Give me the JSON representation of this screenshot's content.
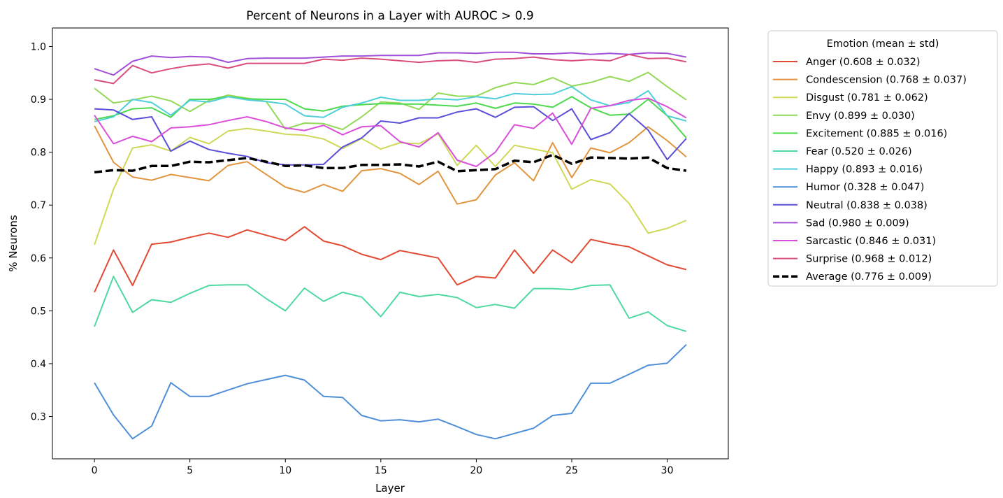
{
  "chart_data": {
    "type": "line",
    "title": "Percent of Neurons in a Layer with AUROC > 0.9",
    "xlabel": "Layer",
    "ylabel": "% Neurons",
    "xlim": [
      -2.2,
      33.2
    ],
    "ylim": [
      0.22,
      1.035
    ],
    "xticks": [
      0,
      5,
      10,
      15,
      20,
      25,
      30
    ],
    "xtick_labels": [
      "0",
      "5",
      "10",
      "15",
      "20",
      "25",
      "30"
    ],
    "yticks": [
      0.3,
      0.4,
      0.5,
      0.6,
      0.7,
      0.8,
      0.9,
      1.0
    ],
    "ytick_labels": [
      "0.3",
      "0.4",
      "0.5",
      "0.6",
      "0.7",
      "0.8",
      "0.9",
      "1.0"
    ],
    "grid": false,
    "legend": {
      "title": "Emotion (mean ± std)",
      "placement": "outside upper right"
    },
    "x": [
      0,
      1,
      2,
      3,
      4,
      5,
      6,
      7,
      8,
      9,
      10,
      11,
      12,
      13,
      14,
      15,
      16,
      17,
      18,
      19,
      20,
      21,
      22,
      23,
      24,
      25,
      26,
      27,
      28,
      29,
      30,
      31
    ],
    "series": [
      {
        "name": "Anger (0.608 ± 0.032)",
        "color": "#e24a33",
        "values": [
          0.535,
          0.615,
          0.548,
          0.626,
          0.63,
          0.639,
          0.647,
          0.639,
          0.653,
          0.643,
          0.633,
          0.659,
          0.632,
          0.623,
          0.607,
          0.597,
          0.614,
          0.607,
          0.6,
          0.549,
          0.565,
          0.562,
          0.615,
          0.571,
          0.615,
          0.591,
          0.635,
          0.627,
          0.621,
          0.604,
          0.587,
          0.578
        ]
      },
      {
        "name": "Condescension (0.768 ± 0.037)",
        "color": "#e0953e",
        "values": [
          0.85,
          0.781,
          0.753,
          0.747,
          0.758,
          0.752,
          0.746,
          0.775,
          0.782,
          0.758,
          0.734,
          0.724,
          0.739,
          0.726,
          0.765,
          0.769,
          0.76,
          0.739,
          0.764,
          0.702,
          0.71,
          0.757,
          0.78,
          0.746,
          0.818,
          0.752,
          0.808,
          0.799,
          0.818,
          0.848,
          0.822,
          0.791
        ]
      },
      {
        "name": "Disgust (0.781 ± 0.062)",
        "color": "#cfd957",
        "values": [
          0.625,
          0.73,
          0.808,
          0.814,
          0.802,
          0.828,
          0.816,
          0.84,
          0.845,
          0.84,
          0.834,
          0.832,
          0.825,
          0.807,
          0.826,
          0.806,
          0.818,
          0.816,
          0.835,
          0.775,
          0.813,
          0.773,
          0.813,
          0.806,
          0.799,
          0.73,
          0.748,
          0.74,
          0.703,
          0.647,
          0.656,
          0.671
        ]
      },
      {
        "name": "Envy (0.899 ± 0.030)",
        "color": "#92d957",
        "values": [
          0.921,
          0.893,
          0.899,
          0.906,
          0.897,
          0.877,
          0.898,
          0.908,
          0.902,
          0.896,
          0.844,
          0.855,
          0.854,
          0.843,
          0.867,
          0.895,
          0.893,
          0.881,
          0.912,
          0.906,
          0.906,
          0.922,
          0.932,
          0.928,
          0.941,
          0.925,
          0.932,
          0.943,
          0.934,
          0.951,
          0.924,
          0.899
        ]
      },
      {
        "name": "Excitement (0.885 ± 0.016)",
        "color": "#4dd94d",
        "values": [
          0.862,
          0.869,
          0.882,
          0.884,
          0.866,
          0.9,
          0.9,
          0.905,
          0.901,
          0.9,
          0.9,
          0.882,
          0.878,
          0.887,
          0.89,
          0.892,
          0.891,
          0.891,
          0.889,
          0.887,
          0.893,
          0.883,
          0.893,
          0.891,
          0.885,
          0.905,
          0.884,
          0.87,
          0.872,
          0.9,
          0.869,
          0.827
        ]
      },
      {
        "name": "Fear (0.520 ± 0.026)",
        "color": "#4fd9a0",
        "values": [
          0.47,
          0.565,
          0.497,
          0.521,
          0.516,
          0.533,
          0.548,
          0.549,
          0.549,
          0.523,
          0.5,
          0.543,
          0.518,
          0.535,
          0.526,
          0.489,
          0.535,
          0.527,
          0.531,
          0.525,
          0.506,
          0.512,
          0.505,
          0.542,
          0.542,
          0.54,
          0.548,
          0.549,
          0.486,
          0.498,
          0.472,
          0.461
        ]
      },
      {
        "name": "Happy (0.893 ± 0.016)",
        "color": "#4fcfd9",
        "values": [
          0.858,
          0.867,
          0.9,
          0.894,
          0.87,
          0.898,
          0.895,
          0.905,
          0.899,
          0.896,
          0.891,
          0.869,
          0.866,
          0.885,
          0.893,
          0.904,
          0.898,
          0.898,
          0.901,
          0.899,
          0.905,
          0.901,
          0.911,
          0.909,
          0.91,
          0.924,
          0.899,
          0.888,
          0.894,
          0.916,
          0.869,
          0.859
        ]
      },
      {
        "name": "Humor (0.328 ± 0.047)",
        "color": "#4f8fd9",
        "values": [
          0.364,
          0.303,
          0.258,
          0.282,
          0.364,
          0.338,
          0.338,
          0.35,
          0.362,
          0.37,
          0.378,
          0.369,
          0.338,
          0.336,
          0.302,
          0.292,
          0.294,
          0.29,
          0.295,
          0.281,
          0.266,
          0.258,
          0.268,
          0.278,
          0.302,
          0.306,
          0.363,
          0.363,
          0.38,
          0.397,
          0.401,
          0.436
        ]
      },
      {
        "name": "Neutral (0.838 ± 0.038)",
        "color": "#5a4fd9",
        "values": [
          0.882,
          0.88,
          0.862,
          0.867,
          0.802,
          0.821,
          0.805,
          0.798,
          0.792,
          0.78,
          0.776,
          0.776,
          0.777,
          0.81,
          0.827,
          0.859,
          0.855,
          0.865,
          0.865,
          0.876,
          0.882,
          0.866,
          0.885,
          0.886,
          0.86,
          0.882,
          0.824,
          0.837,
          0.873,
          0.842,
          0.786,
          0.826
        ]
      },
      {
        "name": "Sad (0.980 ± 0.009)",
        "color": "#a24fd9",
        "values": [
          0.958,
          0.946,
          0.972,
          0.982,
          0.979,
          0.981,
          0.98,
          0.97,
          0.977,
          0.978,
          0.978,
          0.978,
          0.98,
          0.982,
          0.982,
          0.983,
          0.983,
          0.983,
          0.988,
          0.988,
          0.987,
          0.989,
          0.989,
          0.986,
          0.986,
          0.988,
          0.985,
          0.987,
          0.985,
          0.988,
          0.987,
          0.98
        ]
      },
      {
        "name": "Sarcastic (0.846 ± 0.031)",
        "color": "#d94fd9",
        "values": [
          0.87,
          0.816,
          0.83,
          0.82,
          0.846,
          0.848,
          0.852,
          0.86,
          0.867,
          0.858,
          0.846,
          0.841,
          0.851,
          0.833,
          0.848,
          0.85,
          0.82,
          0.81,
          0.837,
          0.785,
          0.773,
          0.8,
          0.852,
          0.845,
          0.874,
          0.815,
          0.883,
          0.888,
          0.898,
          0.902,
          0.886,
          0.865
        ]
      },
      {
        "name": "Surprise (0.968 ± 0.012)",
        "color": "#d94f7a",
        "values": [
          0.937,
          0.93,
          0.964,
          0.95,
          0.958,
          0.964,
          0.967,
          0.959,
          0.968,
          0.968,
          0.968,
          0.968,
          0.976,
          0.974,
          0.978,
          0.976,
          0.973,
          0.97,
          0.973,
          0.974,
          0.97,
          0.976,
          0.977,
          0.98,
          0.975,
          0.973,
          0.975,
          0.973,
          0.985,
          0.977,
          0.978,
          0.971
        ]
      },
      {
        "name": "Average (0.776 ± 0.009)",
        "color": "#000000",
        "dashed": true,
        "values": [
          0.762,
          0.766,
          0.765,
          0.774,
          0.774,
          0.782,
          0.781,
          0.785,
          0.789,
          0.782,
          0.774,
          0.775,
          0.77,
          0.77,
          0.776,
          0.776,
          0.777,
          0.773,
          0.782,
          0.764,
          0.766,
          0.768,
          0.784,
          0.781,
          0.795,
          0.778,
          0.79,
          0.789,
          0.788,
          0.79,
          0.77,
          0.765
        ]
      }
    ]
  }
}
